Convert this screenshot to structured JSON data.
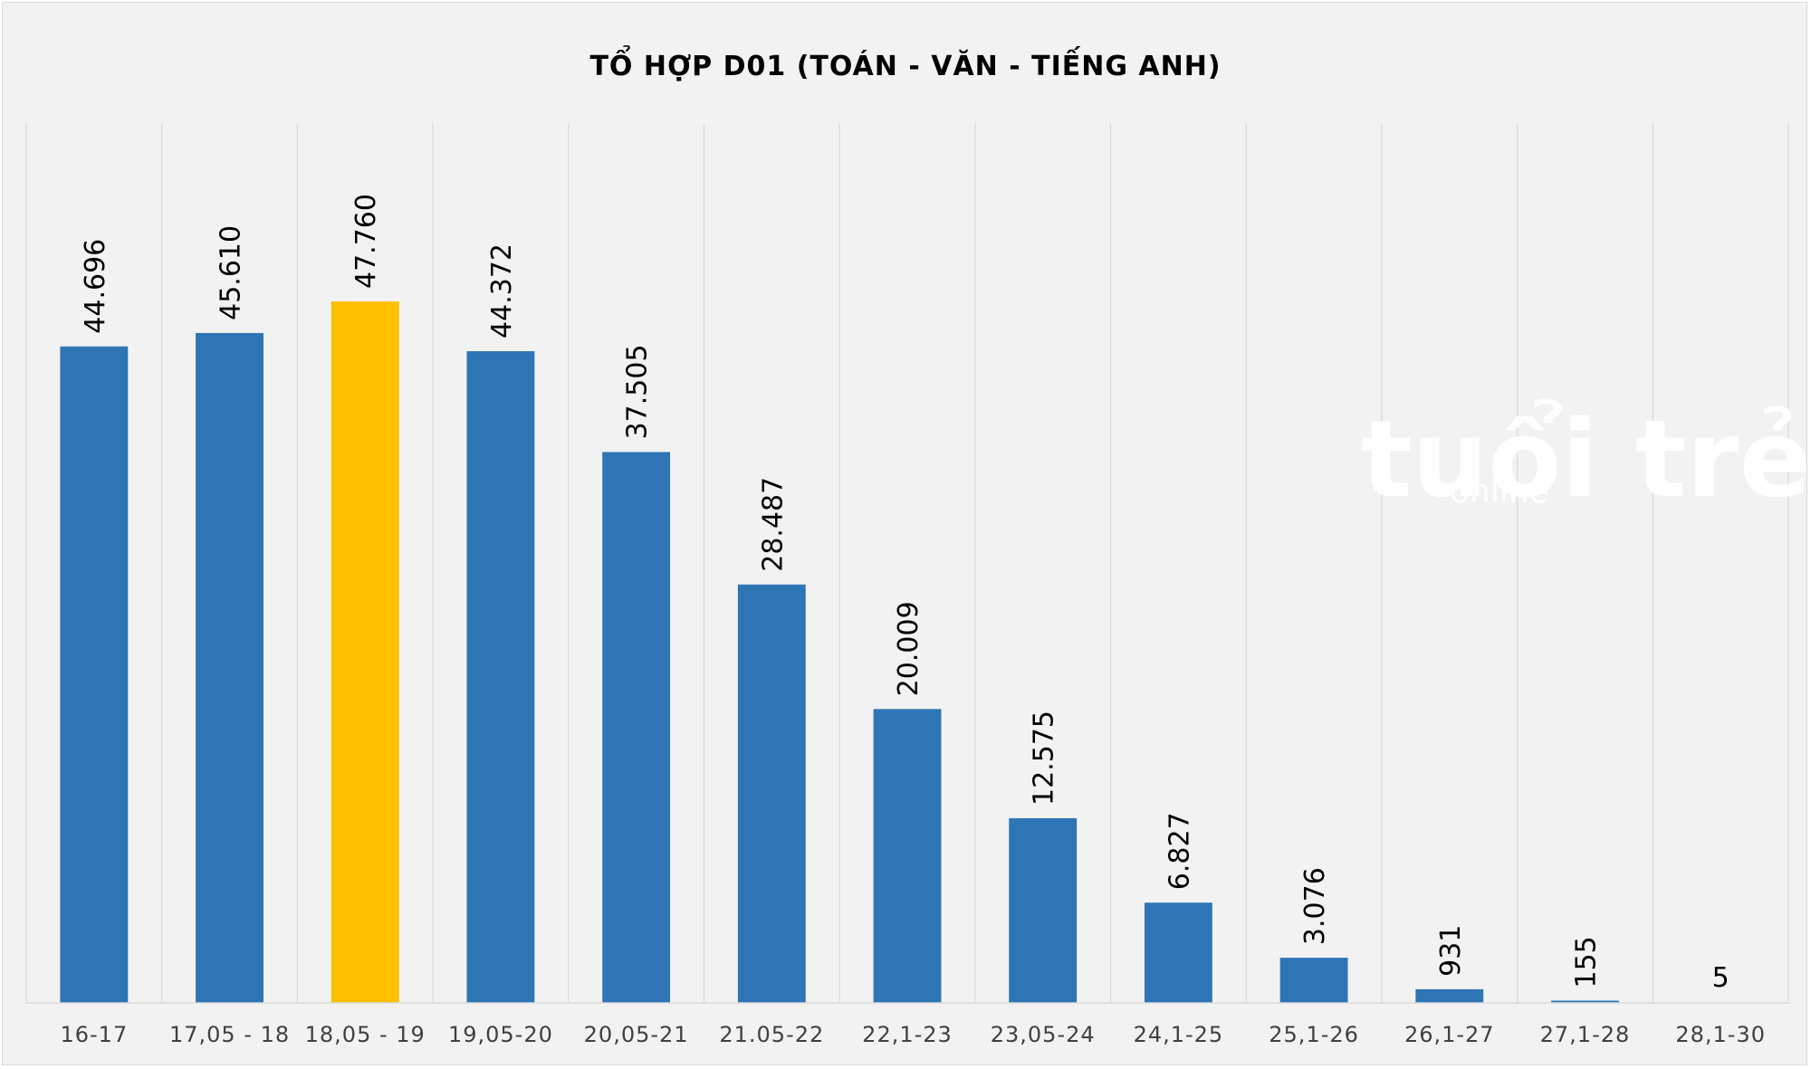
{
  "chart_data": {
    "type": "bar",
    "title": "TỔ HỢP D01 (TOÁN - VĂN - TIẾNG ANH)",
    "xlabel": "",
    "ylabel": "",
    "categories": [
      "16-17",
      "17,05 - 18",
      "18,05 - 19",
      "19,05-20",
      "20,05-21",
      "21.05-22",
      "22,1-23",
      "23,05-24",
      "24,1-25",
      "25,1-26",
      "26,1-27",
      "27,1-28",
      "28,1-30"
    ],
    "values": [
      44696,
      45610,
      47760,
      44372,
      37505,
      28487,
      20009,
      12575,
      6827,
      3076,
      931,
      155,
      5
    ],
    "data_labels": [
      "44.696",
      "45.610",
      "47.760",
      "44.372",
      "37.505",
      "28.487",
      "20.009",
      "12.575",
      "6.827",
      "3.076",
      "931",
      "155",
      "5"
    ],
    "highlight_index": 2,
    "colors": {
      "bar": "#2e75b6",
      "highlight": "#ffc000",
      "background": "#f2f2f2",
      "grid": "#d9d9d9"
    },
    "ylim": [
      0,
      60000
    ],
    "grid": "vertical",
    "legend": "none"
  },
  "watermark": {
    "brand": "tuổi trẻ",
    "sub": "online"
  }
}
